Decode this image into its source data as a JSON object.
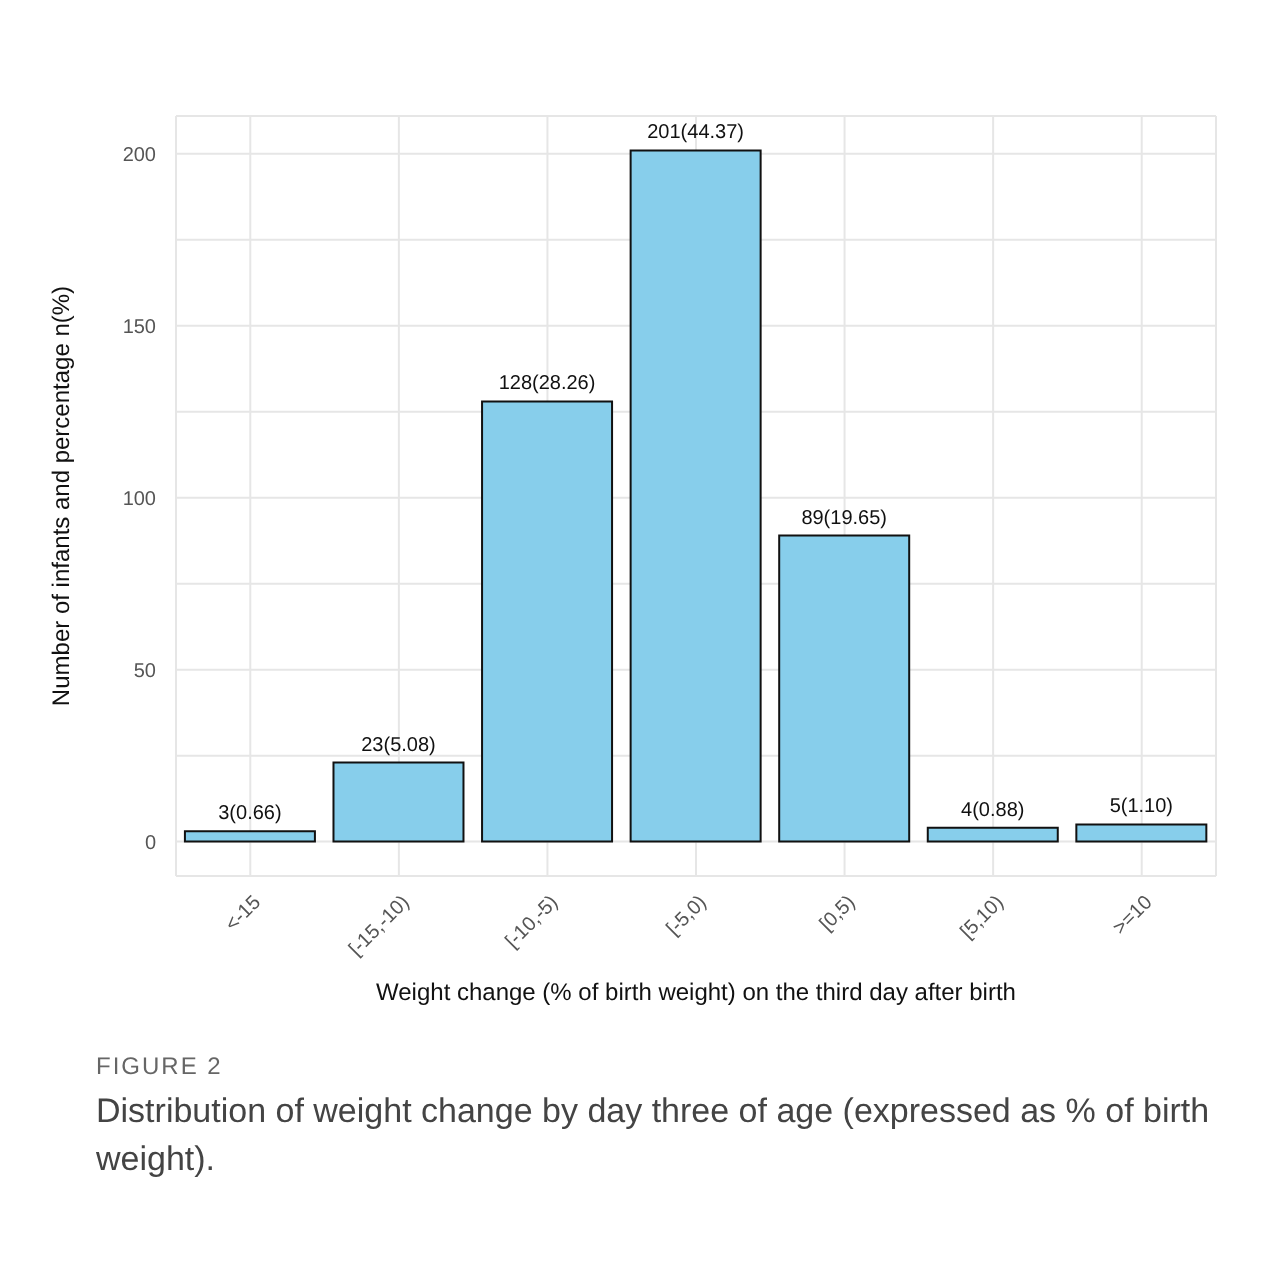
{
  "chart_data": {
    "type": "bar",
    "xlabel": "Weight change (% of birth weight) on the third day after birth",
    "ylabel": "Number of infants and percentage n(%)",
    "categories": [
      "<-15",
      "[-15,-10)",
      "[-10,-5)",
      "[-5,0)",
      "[0,5)",
      "[5,10)",
      ">=10"
    ],
    "values": [
      3,
      23,
      128,
      201,
      89,
      4,
      5
    ],
    "value_labels": [
      "3(0.66)",
      "23(5.08)",
      "128(28.26)",
      "201(44.37)",
      "89(19.65)",
      "4(0.88)",
      "5(1.10)"
    ],
    "color": "#87ceeb",
    "ylim": [
      -10,
      211
    ],
    "yticks": [
      0,
      {
        "value": 25,
        "label": null
      },
      50,
      {
        "value": 75,
        "label": null
      },
      100,
      {
        "value": 125,
        "label": null
      },
      150,
      {
        "value": 175,
        "label": null
      },
      200
    ],
    "grid": true,
    "legend": false,
    "annotations": [
      "FIGURE 2",
      "Distribution of weight change by day three of age (expressed as % of birth weight)."
    ]
  }
}
